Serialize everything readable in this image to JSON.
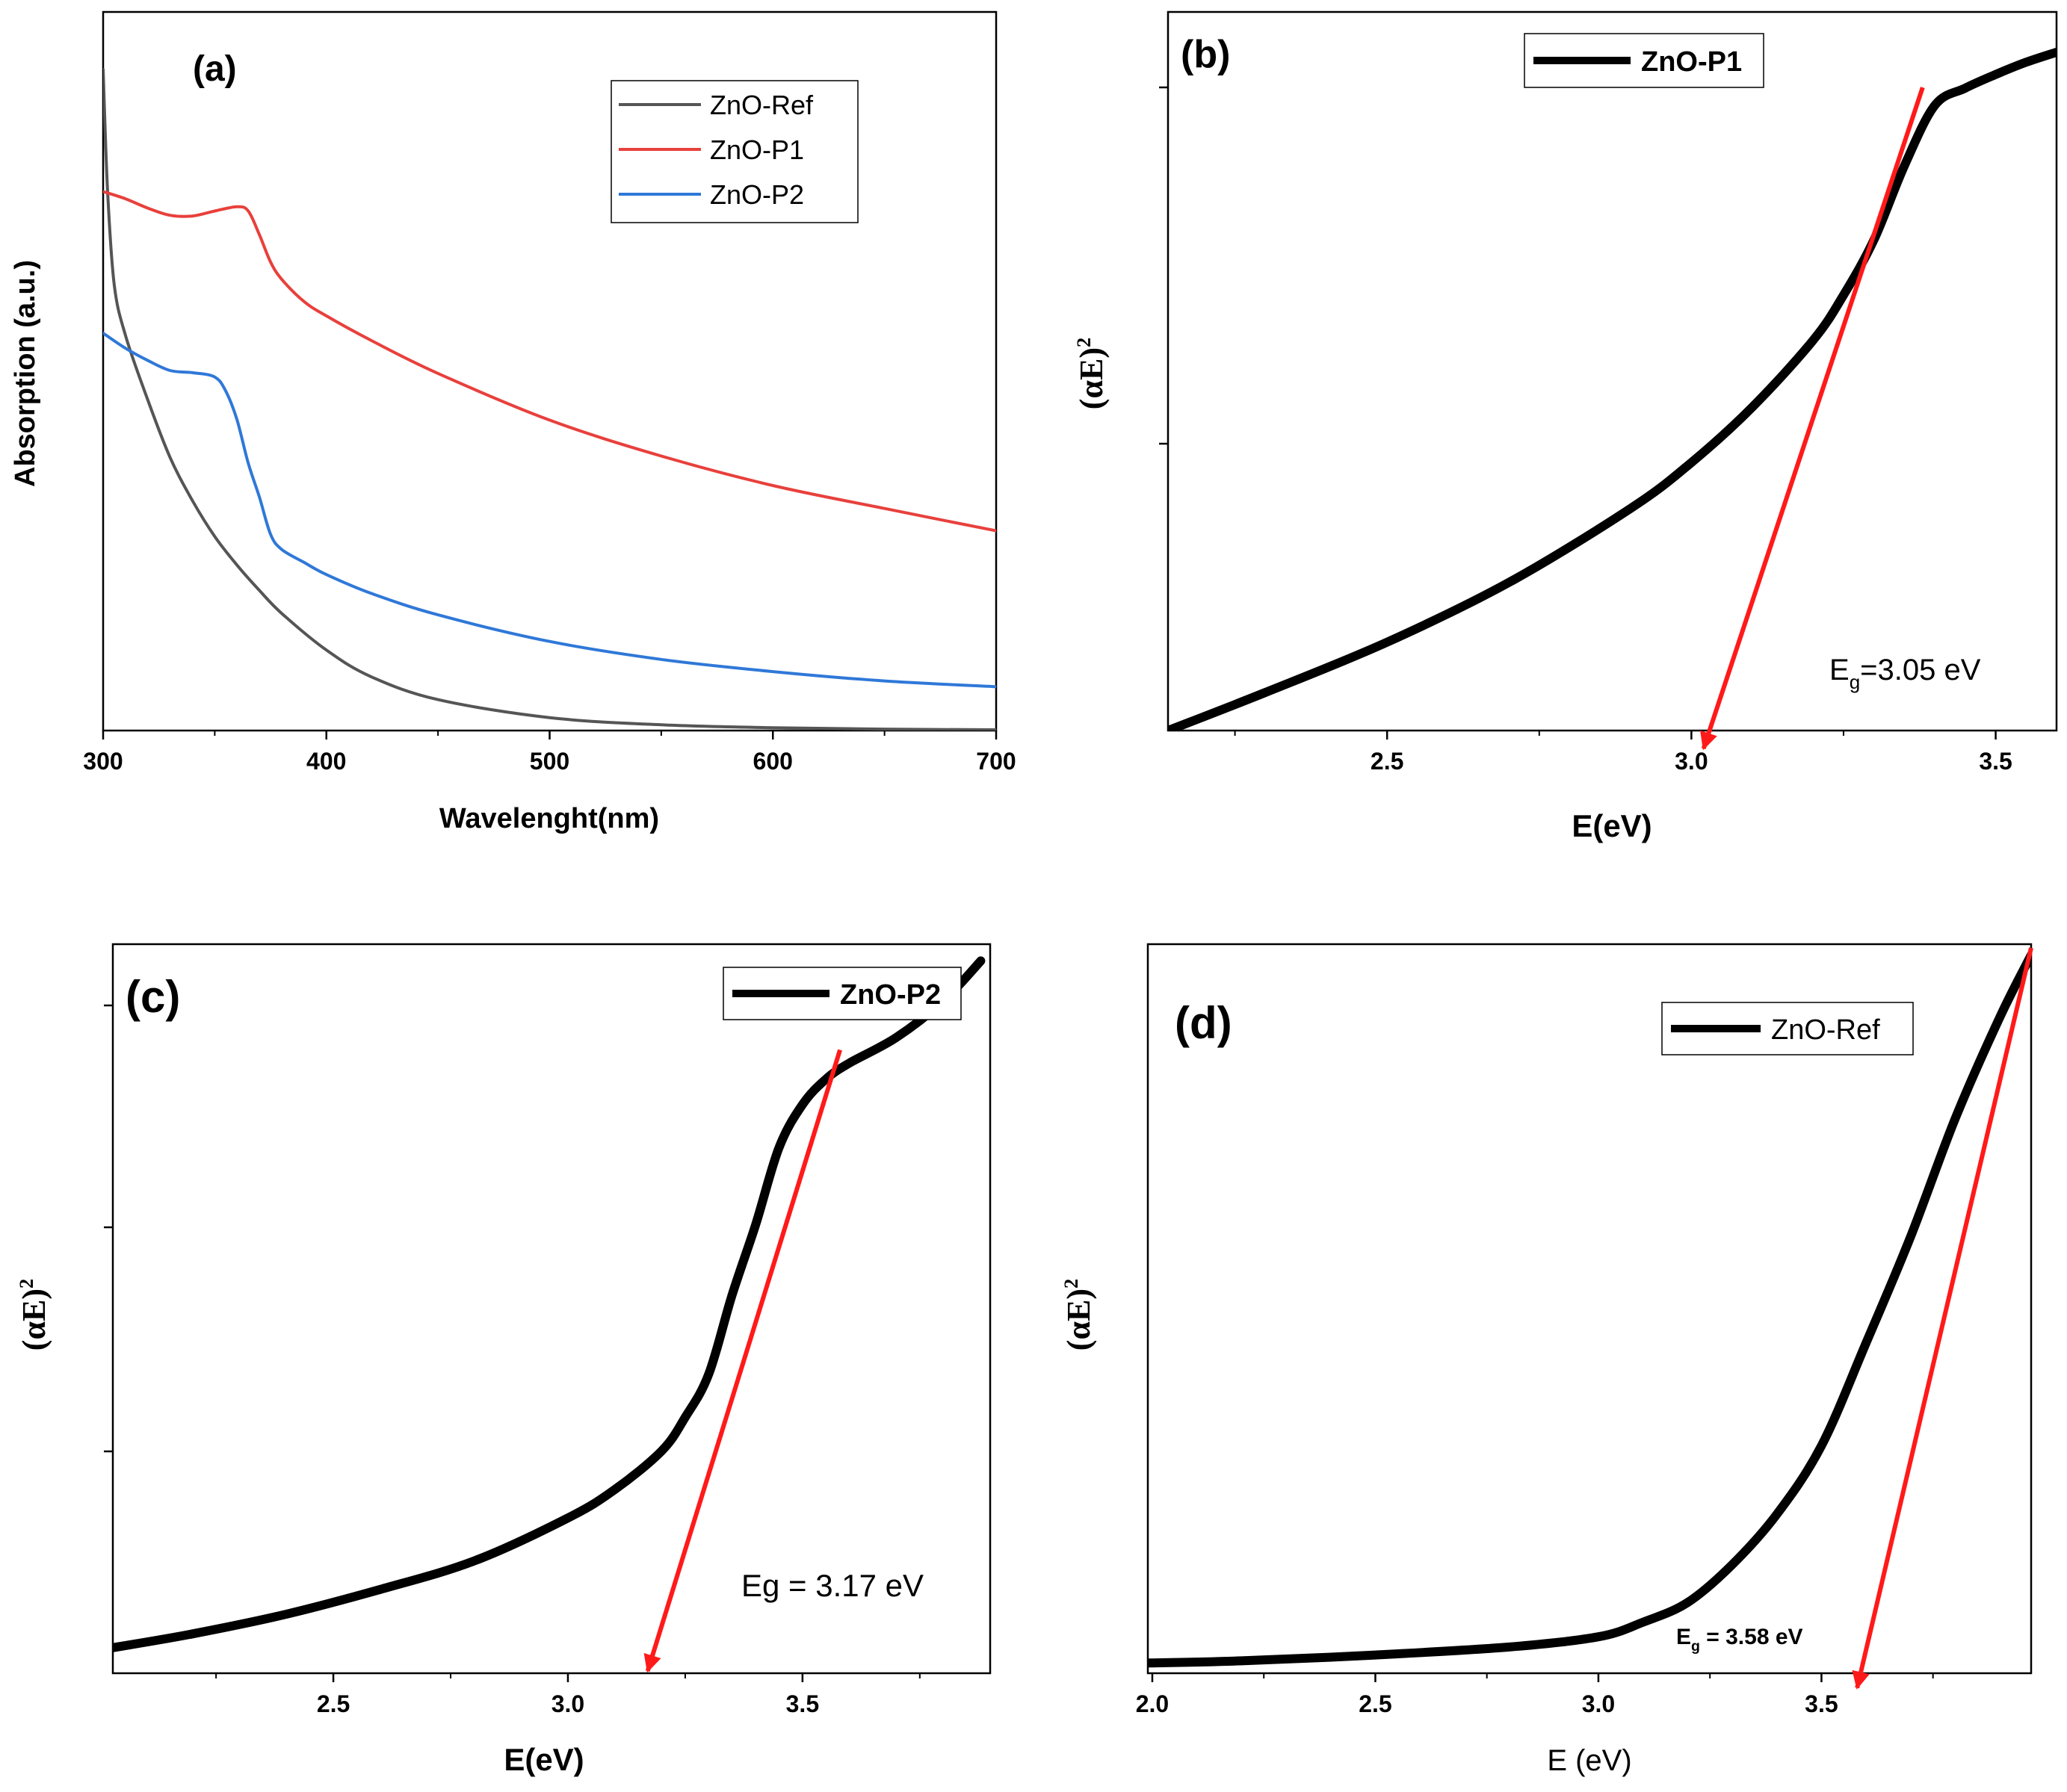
{
  "chart_data": [
    {
      "panel_label": "(a)",
      "type": "line",
      "xlabel": "Wavelenght(nm)",
      "ylabel": "Absorption (a.u.)",
      "xlim": [
        300,
        700
      ],
      "ylim": [
        0,
        100
      ],
      "x_ticks": [
        "300",
        "400",
        "500",
        "600",
        "700"
      ],
      "y_tick_labels_shown": false,
      "legend": {
        "position": "top-right",
        "entries": [
          "ZnO-Ref",
          "ZnO-P1",
          "ZnO-P2"
        ]
      },
      "series": [
        {
          "name": "ZnO-Ref",
          "color": "#555555",
          "x": [
            300,
            302,
            305,
            310,
            320,
            330,
            340,
            350,
            360,
            370,
            380,
            400,
            420,
            450,
            500,
            550,
            600,
            650,
            700
          ],
          "y": [
            92,
            75,
            62,
            55,
            46,
            38,
            32,
            27,
            23,
            19.5,
            16.3,
            11.2,
            7.5,
            4.3,
            1.8,
            0.8,
            0.4,
            0.2,
            0.1
          ]
        },
        {
          "name": "ZnO-P1",
          "color": "#e8403c",
          "x": [
            300,
            310,
            320,
            330,
            340,
            350,
            360,
            365,
            370,
            375,
            380,
            390,
            400,
            420,
            450,
            500,
            550,
            600,
            650,
            700
          ],
          "y": [
            75,
            74,
            72.7,
            71.7,
            71.6,
            72.3,
            72.9,
            72.3,
            69,
            65.2,
            62.8,
            59.7,
            57.7,
            54.3,
            49.7,
            43.2,
            38.2,
            34.1,
            30.9,
            27.8
          ]
        },
        {
          "name": "ZnO-P2",
          "color": "#2f78d8",
          "x": [
            300,
            310,
            320,
            330,
            340,
            350,
            355,
            360,
            365,
            370,
            375,
            380,
            390,
            400,
            420,
            450,
            500,
            550,
            600,
            650,
            700
          ],
          "y": [
            55.3,
            53.2,
            51.5,
            50.1,
            49.8,
            49.2,
            47.2,
            43.2,
            37.2,
            32.5,
            27.3,
            25.2,
            23.4,
            21.7,
            19.1,
            16.1,
            12.4,
            9.9,
            8.2,
            6.9,
            6.1
          ]
        }
      ]
    },
    {
      "panel_label": "(b)",
      "type": "line",
      "xlabel": "E(eV)",
      "ylabel": "(αE)",
      "ylabel_sup": "2",
      "xlim": [
        2.14,
        3.6
      ],
      "ylim": [
        0,
        100
      ],
      "x_ticks": [
        "2.5",
        "3.0",
        "3.5"
      ],
      "legend": {
        "position": "top-center",
        "entries": [
          "ZnO-P1"
        ]
      },
      "annotation": {
        "text_main": "E",
        "text_sub": "g",
        "text_rest": "=3.05 eV"
      },
      "series": [
        {
          "name": "ZnO-P1",
          "color": "#000000",
          "x": [
            2.14,
            2.3,
            2.5,
            2.7,
            2.9,
            3.0,
            3.1,
            3.2,
            3.25,
            3.3,
            3.35,
            3.4,
            3.45,
            3.5,
            3.55,
            3.6
          ],
          "y": [
            0,
            5.3,
            12.3,
            20.6,
            30.9,
            37.3,
            45.0,
            54.3,
            60.6,
            68.3,
            78.6,
            87.0,
            89.4,
            91.3,
            93.0,
            94.4
          ]
        }
      ],
      "tangent": {
        "color": "#ff1a1a",
        "from": [
          3.38,
          89.5
        ],
        "to": [
          3.02,
          -2.5
        ]
      }
    },
    {
      "panel_label": "(c)",
      "type": "line",
      "xlabel": "E(eV)",
      "ylabel": "(αE)",
      "ylabel_sup": "2",
      "xlim": [
        2.03,
        3.9
      ],
      "ylim": [
        0,
        100
      ],
      "x_ticks": [
        "2.5",
        "3.0",
        "3.5"
      ],
      "legend": {
        "position": "top-right",
        "entries": [
          "ZnO-P2"
        ]
      },
      "annotation": {
        "text": "Eg = 3.17 eV"
      },
      "series": [
        {
          "name": "ZnO-P2",
          "color": "#000000",
          "x": [
            2.03,
            2.2,
            2.4,
            2.6,
            2.8,
            3.0,
            3.1,
            3.2,
            3.25,
            3.3,
            3.35,
            3.4,
            3.45,
            3.5,
            3.55,
            3.6,
            3.7,
            3.8,
            3.88
          ],
          "y": [
            3.5,
            5.4,
            8.1,
            11.5,
            15.4,
            21.3,
            25.2,
            30.5,
            35.1,
            41.0,
            51.9,
            61.5,
            72.1,
            78.0,
            81.5,
            83.7,
            87.2,
            92.2,
            97.7
          ]
        }
      ],
      "tangent": {
        "color": "#ff1a1a",
        "from": [
          3.58,
          85.5
        ],
        "to": [
          3.17,
          0.3
        ]
      }
    },
    {
      "panel_label": "(d)",
      "type": "line",
      "xlabel": "E (eV)",
      "ylabel": "(αE)",
      "ylabel_sup": "2",
      "xlim": [
        1.99,
        3.97
      ],
      "ylim": [
        0,
        100
      ],
      "x_ticks": [
        "2.0",
        "2.5",
        "3.0",
        "3.5"
      ],
      "legend": {
        "position": "top-center",
        "entries": [
          "ZnO-Ref"
        ]
      },
      "annotation": {
        "text_main": "E",
        "text_sub": "g",
        "text_rest": " = 3.58 eV"
      },
      "series": [
        {
          "name": "ZnO-Ref",
          "color": "#000000",
          "x": [
            1.99,
            2.2,
            2.5,
            2.8,
            3.0,
            3.1,
            3.2,
            3.3,
            3.4,
            3.5,
            3.6,
            3.7,
            3.8,
            3.9,
            3.97
          ],
          "y": [
            1.4,
            1.7,
            2.5,
            3.6,
            5.0,
            7.0,
            9.7,
            14.9,
            21.8,
            31.2,
            45.3,
            59.9,
            76.1,
            90.0,
            98.5
          ]
        }
      ],
      "tangent": {
        "color": "#ff1a1a",
        "from": [
          3.97,
          99.5
        ],
        "to": [
          3.58,
          -2.0
        ]
      }
    }
  ]
}
